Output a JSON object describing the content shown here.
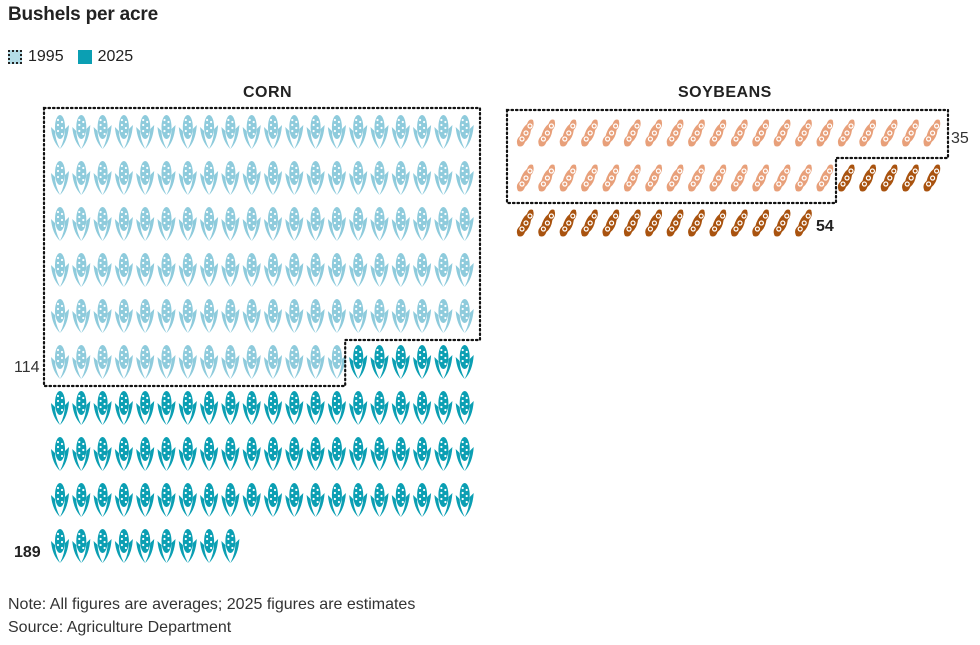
{
  "title": "Bushels per acre",
  "legend": [
    {
      "label": "1995",
      "color": "#b4dde7"
    },
    {
      "label": "2025",
      "color": "#0b9fb3"
    }
  ],
  "chart_data": [
    {
      "type": "pictograph",
      "title": "CORN",
      "unit": "Bushels per acre",
      "series": [
        {
          "name": "1995",
          "value": 114,
          "color": "#8ecbdc"
        },
        {
          "name": "2025",
          "value": 189,
          "color": "#0b9fb3"
        }
      ],
      "labels": {
        "1995": "114",
        "2025": "189"
      },
      "icon": "corn-icon",
      "icons_per_row": 20
    },
    {
      "type": "pictograph",
      "title": "SOYBEANS",
      "unit": "Bushels per acre",
      "series": [
        {
          "name": "1995",
          "value": 35,
          "color": "#e8a07a"
        },
        {
          "name": "2025",
          "value": 54,
          "color": "#a9530f"
        }
      ],
      "labels": {
        "1995": "35",
        "2025": "54"
      },
      "icon": "soybean-icon",
      "icons_per_row": 20
    }
  ],
  "notes": {
    "note": "Note: All figures are averages; 2025 figures are estimates",
    "source": "Source: Agriculture Department"
  }
}
